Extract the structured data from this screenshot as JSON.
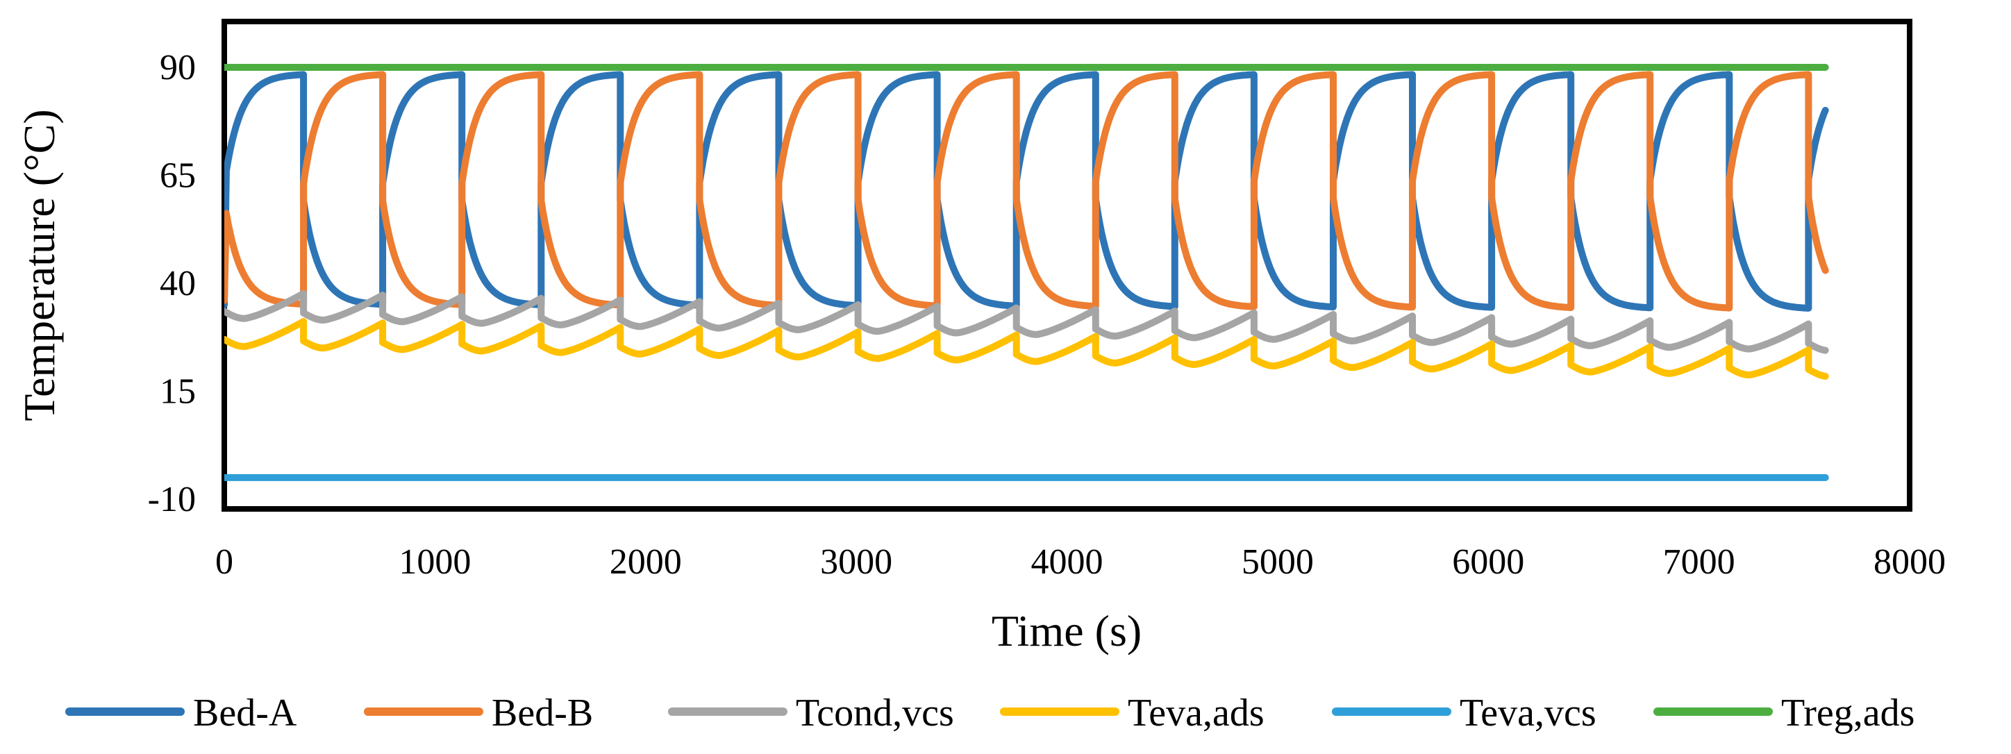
{
  "chart_data": {
    "type": "line",
    "title": "",
    "xlabel": "Time (s)",
    "ylabel": "Temperature (°C)",
    "xlim": [
      0,
      8000
    ],
    "ylim": [
      -10,
      100
    ],
    "xticks": [
      0,
      1000,
      2000,
      3000,
      4000,
      5000,
      6000,
      7000,
      8000
    ],
    "yticks": [
      -10,
      15,
      40,
      65,
      90
    ],
    "xtick_labels": [
      "0",
      "1000",
      "2000",
      "3000",
      "4000",
      "5000",
      "6000",
      "7000",
      "8000"
    ],
    "ytick_labels": [
      "-10",
      "15",
      "40",
      "65",
      "90"
    ],
    "grid": false,
    "legend_position": "bottom",
    "cycle": {
      "half_period_s": 376,
      "end_time_s": 7600,
      "bed_peak_max_c": 88.5,
      "bed_min_start_c": 35,
      "bed_min_end_c": 34,
      "bed_jump_start_c": 63,
      "bed_jump_end_c": 64
    },
    "series": [
      {
        "name": "Bed-A",
        "color": "#2E75B6",
        "kind": "bed",
        "phase": 0
      },
      {
        "name": "Bed-B",
        "color": "#ED7D31",
        "kind": "bed",
        "phase": 1
      },
      {
        "name": "Tcond,vcs",
        "color": "#A5A5A5",
        "kind": "ripple",
        "start_min_c": 33.5,
        "end_min_c": 26,
        "amplitude_c": 4.5
      },
      {
        "name": "Teva,ads",
        "color": "#FFC000",
        "kind": "ripple",
        "start_min_c": 27,
        "end_min_c": 20,
        "amplitude_c": 4.5
      },
      {
        "name": "Teva,vcs",
        "color": "#2E9FD8",
        "kind": "constant",
        "value": -5
      },
      {
        "name": "Treg,ads",
        "color": "#4CAE41",
        "kind": "constant",
        "value": 90
      }
    ]
  }
}
